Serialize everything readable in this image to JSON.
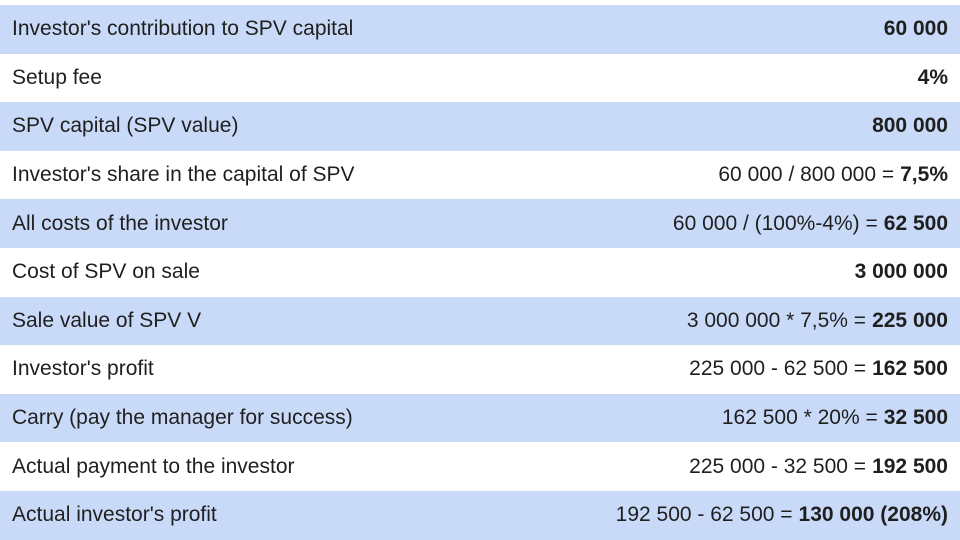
{
  "table": {
    "rows": [
      {
        "label": "Investor's contribution to SPV capital",
        "result": "60 000"
      },
      {
        "label": "Setup fee",
        "result": "4%"
      },
      {
        "label": "SPV capital (SPV value)",
        "result": "800 000"
      },
      {
        "label": "Investor's share in the capital of SPV",
        "formula": "60 000 / 800 000 =",
        "result": "7,5%"
      },
      {
        "label": "All costs of the investor",
        "formula": "60 000 / (100%-4%) =",
        "result": "62 500"
      },
      {
        "label": "Cost of SPV on sale",
        "result": "3 000 000"
      },
      {
        "label": "Sale value of SPV V",
        "formula": "3 000 000 * 7,5% =",
        "result": "225 000"
      },
      {
        "label": "Investor's profit",
        "formula": "225 000 - 62 500 =",
        "result": "162 500"
      },
      {
        "label": "Carry (pay the manager for success)",
        "formula": "162 500 * 20% =",
        "result": "32 500"
      },
      {
        "label": "Actual payment to the investor",
        "formula": "225 000 - 32 500 =",
        "result": "192 500"
      },
      {
        "label": "Actual investor's profit",
        "formula": "192 500 - 62 500 =",
        "result": "130 000 (208%)"
      }
    ]
  }
}
